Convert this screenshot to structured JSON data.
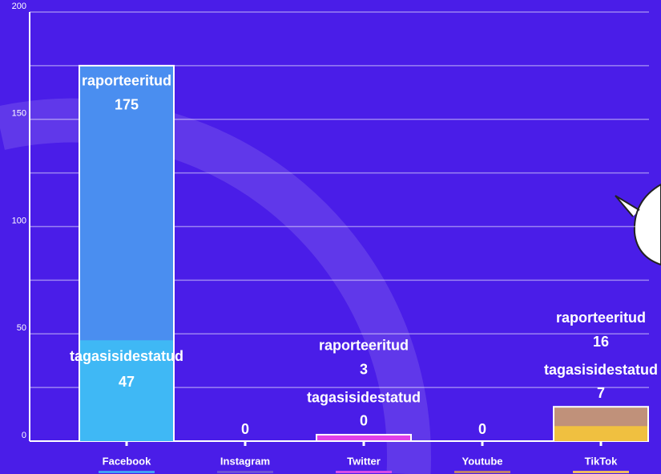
{
  "chart_data": {
    "type": "bar",
    "categories": [
      "Facebook",
      "Instagram",
      "Twitter",
      "Youtube",
      "TikTok"
    ],
    "category_colors": [
      "#3fa0f5",
      "#6a4fd8",
      "#d54be8",
      "#c0806a",
      "#f0b860"
    ],
    "series": [
      {
        "name": "raporteeritud",
        "colors": [
          "#4a8ef0",
          "#6a4fd8",
          "#e040e8",
          "#c0806a",
          "#c0917a"
        ],
        "values": [
          175,
          0,
          3,
          0,
          16
        ]
      },
      {
        "name": "tagasisidestatud",
        "colors": [
          "#3fb8f5",
          "#6a4fd8",
          "#e040e8",
          "#c0806a",
          "#f0c040"
        ],
        "values": [
          47,
          0,
          0,
          0,
          7
        ]
      }
    ],
    "ylim": [
      0,
      200
    ],
    "yticks": [
      0,
      50,
      100,
      150,
      200
    ],
    "minor_grid": [
      25,
      75,
      125,
      175
    ],
    "grid": true
  }
}
